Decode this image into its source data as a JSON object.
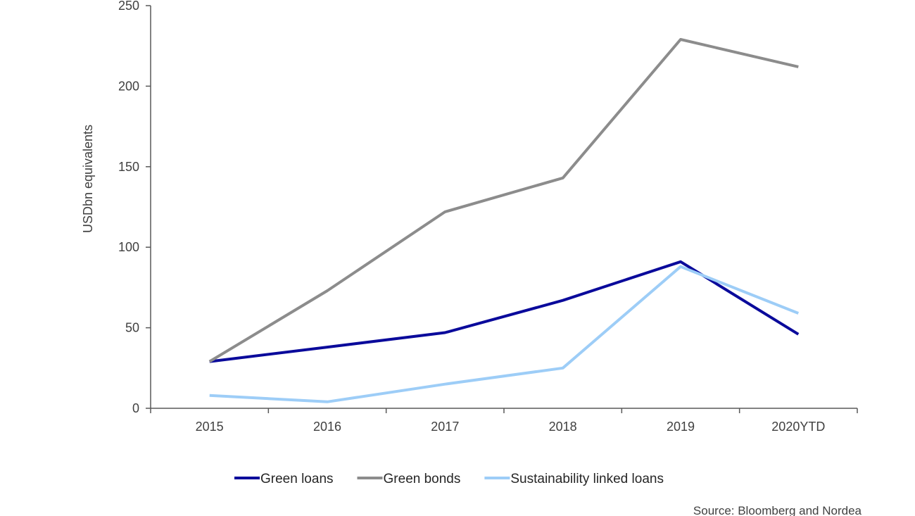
{
  "chart_data": {
    "type": "line",
    "title": "",
    "xlabel": "",
    "ylabel": "USDbn equivalents",
    "categories": [
      "2015",
      "2016",
      "2017",
      "2018",
      "2019",
      "2020YTD"
    ],
    "ylim": [
      0,
      250
    ],
    "yticks": [
      0,
      50,
      100,
      150,
      200,
      250
    ],
    "grid": false,
    "legend_position": "bottom",
    "series": [
      {
        "name": "Green loans",
        "color": "#0a0a9b",
        "values": [
          29,
          38,
          47,
          67,
          91,
          46
        ]
      },
      {
        "name": "Green bonds",
        "color": "#8c8c8c",
        "values": [
          29,
          73,
          122,
          143,
          229,
          212
        ]
      },
      {
        "name": "Sustainability linked loans",
        "color": "#9dcdf7",
        "values": [
          8,
          4,
          15,
          25,
          88,
          59
        ]
      }
    ],
    "source": "Source: Bloomberg and Nordea"
  }
}
